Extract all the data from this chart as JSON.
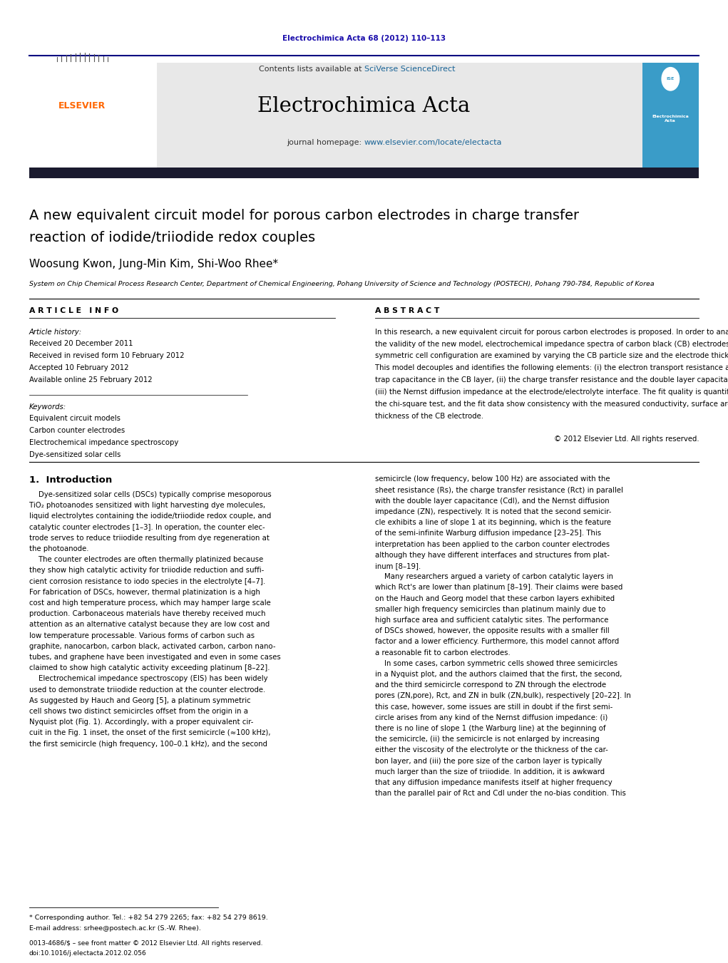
{
  "page_width": 10.21,
  "page_height": 13.51,
  "bg_color": "#ffffff",
  "journal_ref": "Electrochimica Acta 68 (2012) 110–113",
  "journal_ref_color": "#1a0dab",
  "contents_text": "Contents lists available at ",
  "sciverse_text": "SciVerse ScienceDirect",
  "sciverse_color": "#1a6496",
  "journal_name": "Electrochimica Acta",
  "journal_homepage_prefix": "journal homepage: ",
  "journal_homepage_url": "www.elsevier.com/locate/electacta",
  "journal_homepage_color": "#1a6496",
  "header_bg": "#e8e8e8",
  "dark_bar_color": "#1a1a2e",
  "elsevier_color": "#ff6600",
  "paper_title_line1": "A new equivalent circuit model for porous carbon electrodes in charge transfer",
  "paper_title_line2": "reaction of iodide/triiodide redox couples",
  "authors": "Woosung Kwon, Jung-Min Kim, Shi-Woo Rhee*",
  "affiliation": "System on Chip Chemical Process Research Center, Department of Chemical Engineering, Pohang University of Science and Technology (POSTECH), Pohang 790-784, Republic of Korea",
  "article_info_header": "A R T I C L E   I N F O",
  "abstract_header": "A B S T R A C T",
  "article_history_label": "Article history:",
  "dates": [
    "Received 20 December 2011",
    "Received in revised form 10 February 2012",
    "Accepted 10 February 2012",
    "Available online 25 February 2012"
  ],
  "keywords_label": "Keywords:",
  "keywords": [
    "Equivalent circuit models",
    "Carbon counter electrodes",
    "Electrochemical impedance spectroscopy",
    "Dye-sensitized solar cells"
  ],
  "abstract_lines": [
    "In this research, a new equivalent circuit for porous carbon electrodes is proposed. In order to analyze",
    "the validity of the new model, electrochemical impedance spectra of carbon black (CB) electrodes in a",
    "symmetric cell configuration are examined by varying the CB particle size and the electrode thickness.",
    "This model decouples and identifies the following elements: (i) the electron transport resistance and",
    "trap capacitance in the CB layer, (ii) the charge transfer resistance and the double layer capacitance, and",
    "(iii) the Nernst diffusion impedance at the electrode/electrolyte interface. The fit quality is quantified by",
    "the chi-square test, and the fit data show consistency with the measured conductivity, surface area, and",
    "thickness of the CB electrode."
  ],
  "copyright": "© 2012 Elsevier Ltd. All rights reserved.",
  "section1_title": "1.  Introduction",
  "left_intro_lines": [
    "    Dye-sensitized solar cells (DSCs) typically comprise mesoporous",
    "TiO₂ photoanodes sensitized with light harvesting dye molecules,",
    "liquid electrolytes containing the iodide/triiodide redox couple, and",
    "catalytic counter electrodes [1–3]. In operation, the counter elec-",
    "trode serves to reduce triiodide resulting from dye regeneration at",
    "the photoanode.",
    "    The counter electrodes are often thermally platinized because",
    "they show high catalytic activity for triiodide reduction and suffi-",
    "cient corrosion resistance to iodo species in the electrolyte [4–7].",
    "For fabrication of DSCs, however, thermal platinization is a high",
    "cost and high temperature process, which may hamper large scale",
    "production. Carbonaceous materials have thereby received much",
    "attention as an alternative catalyst because they are low cost and",
    "low temperature processable. Various forms of carbon such as",
    "graphite, nanocarbon, carbon black, activated carbon, carbon nano-",
    "tubes, and graphene have been investigated and even in some cases",
    "claimed to show high catalytic activity exceeding platinum [8–22].",
    "    Electrochemical impedance spectroscopy (EIS) has been widely",
    "used to demonstrate triiodide reduction at the counter electrode.",
    "As suggested by Hauch and Georg [5], a platinum symmetric",
    "cell shows two distinct semicircles offset from the origin in a",
    "Nyquist plot (Fig. 1). Accordingly, with a proper equivalent cir-",
    "cuit in the Fig. 1 inset, the onset of the first semicircle (≈100 kHz),",
    "the first semicircle (high frequency, 100–0.1 kHz), and the second"
  ],
  "right_intro_lines": [
    "semicircle (low frequency, below 100 Hz) are associated with the",
    "sheet resistance (Rs), the charge transfer resistance (Rct) in parallel",
    "with the double layer capacitance (Cdl), and the Nernst diffusion",
    "impedance (ZN), respectively. It is noted that the second semicir-",
    "cle exhibits a line of slope 1 at its beginning, which is the feature",
    "of the semi-infinite Warburg diffusion impedance [23–25]. This",
    "interpretation has been applied to the carbon counter electrodes",
    "although they have different interfaces and structures from plat-",
    "inum [8–19].",
    "    Many researchers argued a variety of carbon catalytic layers in",
    "which Rct's are lower than platinum [8–19]. Their claims were based",
    "on the Hauch and Georg model that these carbon layers exhibited",
    "smaller high frequency semicircles than platinum mainly due to",
    "high surface area and sufficient catalytic sites. The performance",
    "of DSCs showed, however, the opposite results with a smaller fill",
    "factor and a lower efficiency. Furthermore, this model cannot afford",
    "a reasonable fit to carbon electrodes.",
    "    In some cases, carbon symmetric cells showed three semicircles",
    "in a Nyquist plot, and the authors claimed that the first, the second,",
    "and the third semicircle correspond to ZN through the electrode",
    "pores (ZN,pore), Rct, and ZN in bulk (ZN,bulk), respectively [20–22]. In",
    "this case, however, some issues are still in doubt if the first semi-",
    "circle arises from any kind of the Nernst diffusion impedance: (i)",
    "there is no line of slope 1 (the Warburg line) at the beginning of",
    "the semicircle, (ii) the semicircle is not enlarged by increasing",
    "either the viscosity of the electrolyte or the thickness of the car-",
    "bon layer, and (iii) the pore size of the carbon layer is typically",
    "much larger than the size of triiodide. In addition, it is awkward",
    "that any diffusion impedance manifests itself at higher frequency",
    "than the parallel pair of Rct and Cdl under the no-bias condition. This"
  ],
  "footnote_line1": "* Corresponding author. Tel.: +82 54 279 2265; fax: +82 54 279 8619.",
  "footnote_line2": "E-mail address: srhee@postech.ac.kr (S.-W. Rhee).",
  "bottom_line1": "0013-4686/$ – see front matter © 2012 Elsevier Ltd. All rights reserved.",
  "bottom_line2": "doi:10.1016/j.electacta.2012.02.056"
}
